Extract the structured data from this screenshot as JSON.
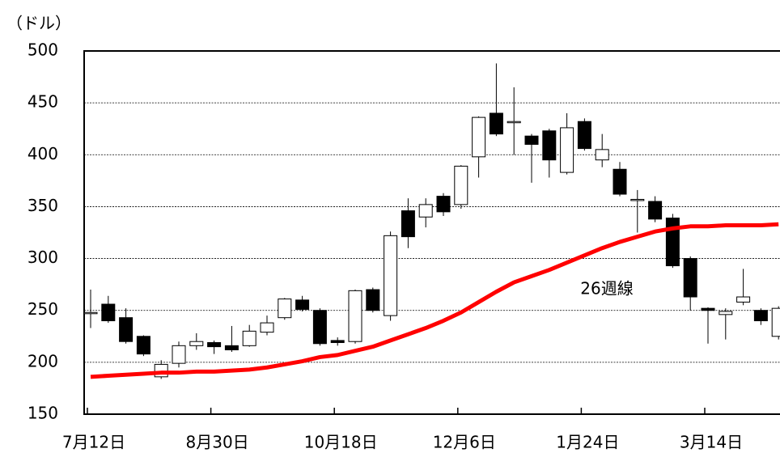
{
  "chart_data": {
    "type": "candlestick",
    "y_label": "（ドル）",
    "annotation": "26週線",
    "categories": [
      "7月12日",
      null,
      null,
      null,
      null,
      null,
      null,
      "8月30日",
      null,
      null,
      null,
      null,
      null,
      null,
      "10月18日",
      null,
      null,
      null,
      null,
      null,
      null,
      "12月6日",
      null,
      null,
      null,
      null,
      null,
      null,
      "1月24日",
      null,
      null,
      null,
      null,
      null,
      null,
      "3月14日",
      null,
      null,
      null,
      null
    ],
    "open": [
      248,
      256,
      243,
      225,
      186,
      199,
      216,
      219,
      216,
      216,
      229,
      243,
      260,
      250,
      221,
      220,
      270,
      245,
      346,
      340,
      360,
      352,
      398,
      440,
      432,
      418,
      423,
      383,
      432,
      395,
      386,
      357,
      355,
      339,
      300,
      252,
      246,
      258,
      250,
      225
    ],
    "high": [
      270,
      264,
      252,
      226,
      202,
      220,
      228,
      221,
      235,
      236,
      245,
      262,
      264,
      252,
      224,
      270,
      272,
      326,
      358,
      358,
      363,
      390,
      437,
      488,
      465,
      420,
      425,
      440,
      435,
      420,
      393,
      366,
      360,
      343,
      302,
      253,
      252,
      290,
      252,
      254
    ],
    "low": [
      233,
      238,
      218,
      206,
      184,
      195,
      212,
      208,
      210,
      215,
      226,
      241,
      249,
      216,
      216,
      218,
      248,
      240,
      310,
      330,
      341,
      348,
      378,
      418,
      400,
      373,
      378,
      381,
      404,
      388,
      360,
      325,
      335,
      291,
      250,
      218,
      222,
      255,
      236,
      222
    ],
    "close": [
      248,
      240,
      220,
      208,
      198,
      216,
      220,
      215,
      212,
      230,
      238,
      261,
      251,
      218,
      219,
      269,
      250,
      322,
      321,
      352,
      345,
      389,
      436,
      420,
      432,
      410,
      395,
      426,
      406,
      405,
      362,
      357,
      338,
      293,
      263,
      250,
      249,
      263,
      240,
      252
    ],
    "up_color": "#ffffff",
    "down_color": "#000000",
    "moving_average": {
      "name": "26週線",
      "color": "#ff0000",
      "values": [
        186,
        187,
        188,
        189,
        190,
        190,
        191,
        191,
        192,
        193,
        195,
        198,
        201,
        205,
        207,
        211,
        215,
        221,
        227,
        233,
        240,
        248,
        258,
        268,
        277,
        283,
        289,
        296,
        303,
        310,
        316,
        321,
        326,
        329,
        331,
        331,
        332,
        332,
        332,
        333
      ]
    },
    "ylim": [
      150,
      500
    ],
    "yticks": [
      150,
      200,
      250,
      300,
      350,
      400,
      450,
      500
    ],
    "grid": true
  }
}
